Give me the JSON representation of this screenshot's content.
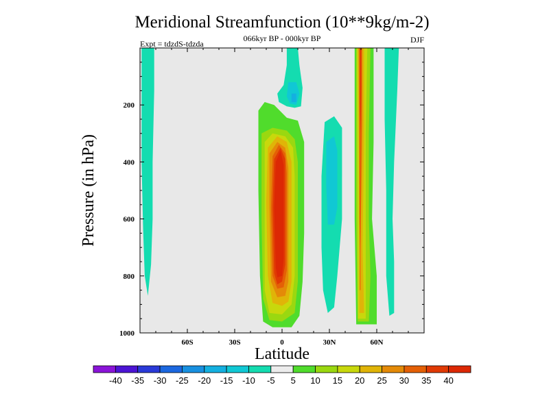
{
  "chart_data": {
    "type": "contour",
    "title": "Meridional Streamfunction (10**9kg/m-2)",
    "subtitle": "066kyr BP - 000kyr BP",
    "left_label": "Expt = tdzdS-tdzda",
    "right_label": "DJF",
    "xlabel": "Latitude",
    "ylabel": "Pressure (in hPa)",
    "xlim": [
      -90,
      90
    ],
    "ylim": [
      1000,
      0
    ],
    "x_ticks": [
      {
        "value": -60,
        "label": "60S"
      },
      {
        "value": -30,
        "label": "30S"
      },
      {
        "value": 0,
        "label": "0"
      },
      {
        "value": 30,
        "label": "30N"
      },
      {
        "value": 60,
        "label": "60N"
      }
    ],
    "y_ticks": [
      {
        "value": 200,
        "label": "200"
      },
      {
        "value": 400,
        "label": "400"
      },
      {
        "value": 600,
        "label": "600"
      },
      {
        "value": 800,
        "label": "800"
      },
      {
        "value": 1000,
        "label": "1000"
      }
    ],
    "colorbar": {
      "levels": [
        -40,
        -35,
        -30,
        -25,
        -20,
        -15,
        -10,
        -5,
        5,
        10,
        15,
        20,
        25,
        30,
        35,
        40
      ],
      "labels": [
        "-40",
        "-35",
        "-30",
        "-25",
        "-20",
        "-15",
        "-10",
        "-5",
        "5",
        "10",
        "15",
        "20",
        "25",
        "30",
        "35",
        "40"
      ],
      "colors": [
        "#8a14d8",
        "#4c14d4",
        "#2a3ad8",
        "#1c68e0",
        "#1890e0",
        "#14b0e0",
        "#10c8d4",
        "#14dcb0",
        "#ececec",
        "#50dc2c",
        "#9ad810",
        "#c8d80c",
        "#e0b408",
        "#e48a08",
        "#e46006",
        "#e03a04",
        "#dc2804"
      ]
    },
    "features": [
      {
        "name": "sh-polar-cell",
        "sign": "negative",
        "peak": -10,
        "lat_range": [
          -88,
          -82
        ],
        "pressure_range": [
          20,
          870
        ]
      },
      {
        "name": "tropical-upper-cell",
        "sign": "negative",
        "peak": -20,
        "lat_range": [
          3,
          13
        ],
        "pressure_range": [
          20,
          210
        ]
      },
      {
        "name": "hadley-cell",
        "sign": "positive",
        "peak": 40,
        "lat_range": [
          -15,
          12
        ],
        "pressure_range": [
          200,
          970
        ]
      },
      {
        "name": "nh-subtropical-cell",
        "sign": "negative",
        "peak": -15,
        "lat_range": [
          25,
          38
        ],
        "pressure_range": [
          250,
          930
        ]
      },
      {
        "name": "nh-midlatitude-cell",
        "sign": "positive",
        "peak": 35,
        "lat_range": [
          46,
          58
        ],
        "pressure_range": [
          20,
          970
        ]
      },
      {
        "name": "nh-polar-cell",
        "sign": "negative",
        "peak": -10,
        "lat_range": [
          66,
          73
        ],
        "pressure_range": [
          20,
          940
        ]
      }
    ]
  }
}
